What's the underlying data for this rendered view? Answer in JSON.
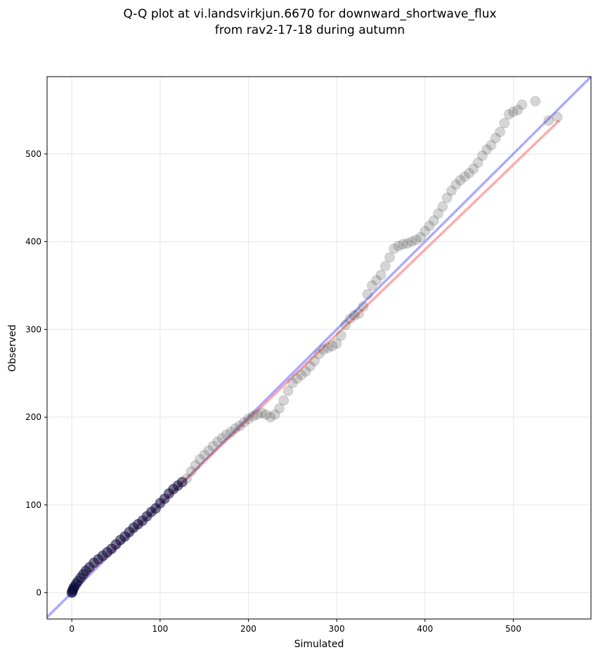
{
  "chart_data": {
    "type": "scatter",
    "title": "Q-Q plot at vi.landsvirkjun.6670 for downward_shortwave_flux",
    "subtitle": "from rav2-17-18 during autumn",
    "xlabel": "Simulated",
    "ylabel": "Observed",
    "xlim": [
      -28,
      588
    ],
    "ylim": [
      -30,
      588
    ],
    "xticks": [
      0,
      100,
      200,
      300,
      400,
      500
    ],
    "yticks": [
      0,
      100,
      200,
      300,
      400,
      500
    ],
    "grid": true,
    "colors": {
      "points": "#404040",
      "low_points": "#0a0a3a",
      "identity_line": "#6666ff",
      "fit_line": "#ff6666",
      "grid": "#e6e6e6"
    },
    "identity_line": {
      "x": [
        -28,
        588
      ],
      "y": [
        -28,
        588
      ]
    },
    "fit_line": {
      "x": [
        0,
        552
      ],
      "y": [
        4,
        538
      ]
    },
    "quantiles": {
      "x": [
        0,
        0.5,
        1,
        2,
        3,
        5,
        7,
        10,
        13,
        16,
        20,
        25,
        30,
        35,
        40,
        45,
        50,
        55,
        60,
        65,
        70,
        75,
        80,
        85,
        90,
        95,
        100,
        105,
        110,
        115,
        120,
        125,
        130,
        135,
        140,
        145,
        150,
        155,
        160,
        165,
        170,
        175,
        180,
        185,
        190,
        195,
        200,
        205,
        210,
        215,
        220,
        225,
        230,
        235,
        240,
        245,
        250,
        255,
        260,
        265,
        270,
        275,
        280,
        285,
        290,
        295,
        300,
        305,
        310,
        315,
        320,
        325,
        330,
        335,
        340,
        345,
        350,
        355,
        360,
        365,
        370,
        375,
        380,
        385,
        390,
        395,
        400,
        405,
        410,
        415,
        420,
        425,
        430,
        435,
        440,
        445,
        450,
        455,
        460,
        465,
        470,
        475,
        480,
        485,
        490,
        495,
        500,
        505,
        510,
        525,
        540,
        550
      ],
      "y": [
        0,
        1,
        3,
        5,
        7,
        10,
        13,
        17,
        21,
        25,
        29,
        34,
        38,
        42,
        46,
        50,
        55,
        60,
        64,
        69,
        74,
        78,
        82,
        87,
        92,
        96,
        102,
        107,
        113,
        118,
        122,
        126,
        130,
        138,
        145,
        152,
        157,
        162,
        167,
        172,
        176,
        180,
        183,
        187,
        190,
        194,
        198,
        201,
        203,
        205,
        203,
        200,
        203,
        210,
        219,
        230,
        239,
        244,
        248,
        252,
        258,
        264,
        272,
        277,
        279,
        281,
        284,
        293,
        305,
        312,
        316,
        318,
        326,
        340,
        350,
        356,
        362,
        372,
        382,
        392,
        395,
        397,
        398,
        400,
        402,
        405,
        412,
        418,
        424,
        432,
        440,
        450,
        458,
        465,
        470,
        474,
        478,
        483,
        490,
        498,
        505,
        510,
        518,
        525,
        535,
        545,
        548,
        550,
        556,
        560,
        538,
        542
      ]
    }
  }
}
